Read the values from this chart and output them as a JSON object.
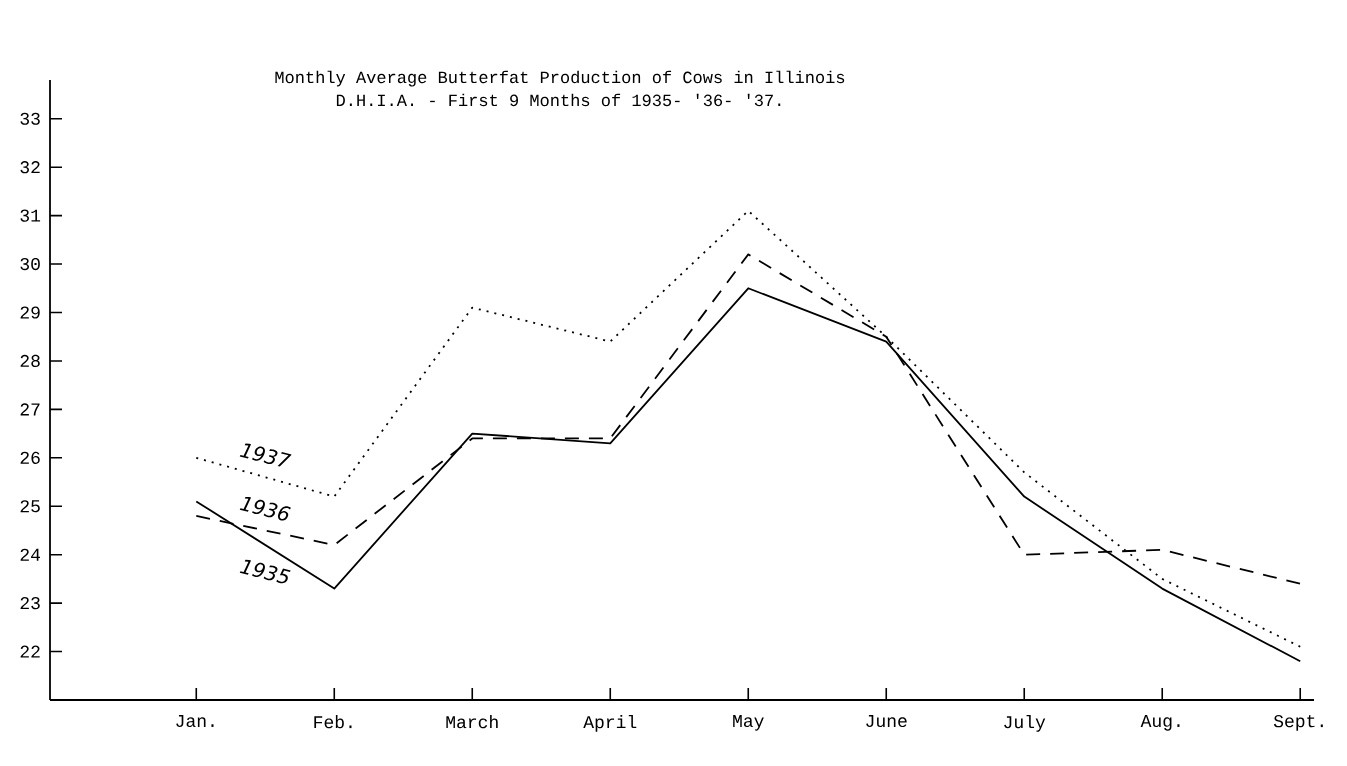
{
  "chart_data": {
    "type": "line",
    "title": "Monthly Average Butterfat Production of Cows in Illinois",
    "subtitle": "D.H.I.A. - First 9 Months of 1935- '36- '37.",
    "categories": [
      "Jan.",
      "Feb.",
      "March",
      "April",
      "May",
      "June",
      "July",
      "Aug.",
      "Sept."
    ],
    "series": [
      {
        "name": "1935",
        "color": "#000000",
        "line_style": "solid",
        "values": [
          25.1,
          23.3,
          26.5,
          26.3,
          29.5,
          28.4,
          25.2,
          23.3,
          21.8
        ]
      },
      {
        "name": "1936",
        "color": "#000000",
        "line_style": "dashed",
        "values": [
          24.8,
          24.2,
          26.4,
          26.4,
          30.2,
          28.5,
          24.0,
          24.1,
          23.4
        ]
      },
      {
        "name": "1937",
        "color": "#000000",
        "line_style": "dotted",
        "values": [
          26.0,
          25.2,
          29.1,
          28.4,
          31.1,
          28.5,
          25.7,
          23.5,
          22.1
        ]
      }
    ],
    "ylim": [
      21.0,
      33.8
    ],
    "yticks": [
      22,
      23,
      24,
      25,
      26,
      27,
      28,
      29,
      30,
      31,
      32,
      33
    ],
    "grid": false,
    "legend": false,
    "marker": "none"
  }
}
